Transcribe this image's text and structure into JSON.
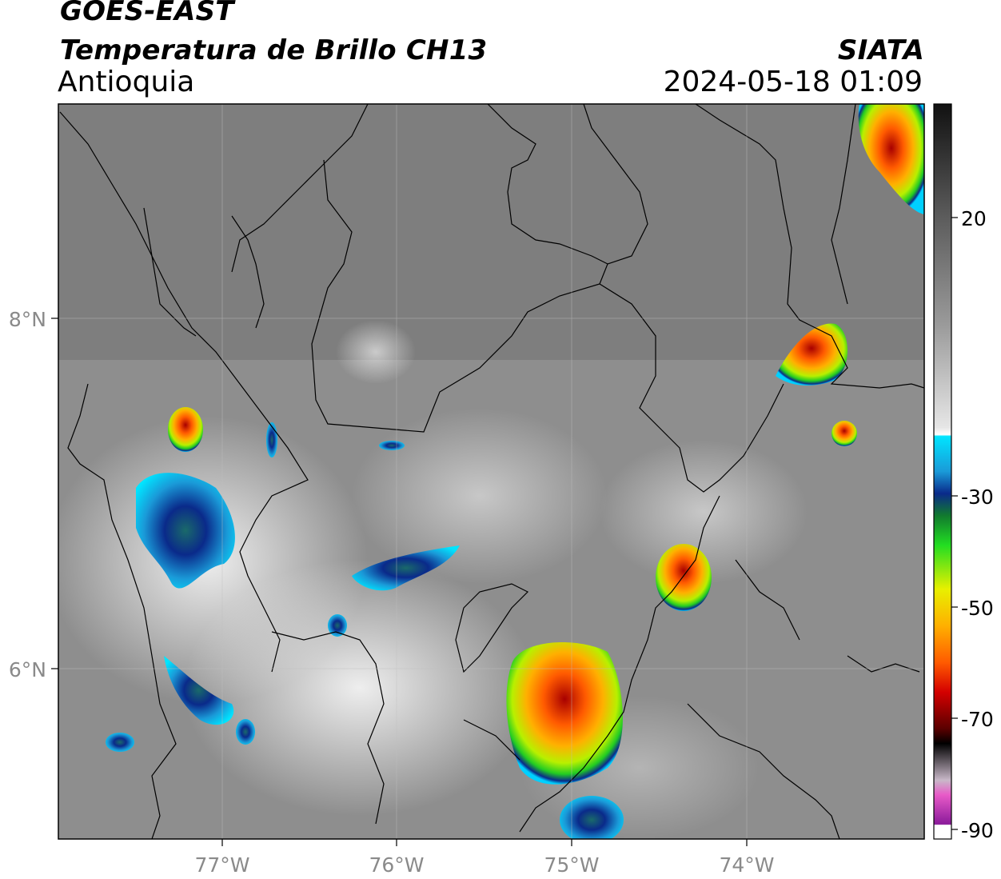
{
  "header": {
    "satellite": "GOES-EAST",
    "product": "Temperatura de Brillo CH13",
    "region": "Antioquia",
    "organization": "SIATA",
    "datetime": "2024-05-18 01:09"
  },
  "map": {
    "longitude_ticks": [
      "77°W",
      "76°W",
      "75°W",
      "74°W"
    ],
    "latitude_ticks": [
      "8°N",
      "6°N"
    ]
  },
  "colorbar": {
    "tick_labels": [
      "20",
      "-30",
      "-50",
      "-70",
      "-90"
    ],
    "colors": {
      "warm_gray_top": "#1a1a1a",
      "gray": "#8c8c8c",
      "white": "#f4f4f4",
      "cyan": "#00e5ff",
      "blue": "#0a2a8a",
      "green": "#19b83a",
      "yellow": "#f5e600",
      "orange": "#ff8a00",
      "red": "#d40000",
      "dark_red": "#4a0000",
      "pink": "#e040c0",
      "purple": "#8a1a9a"
    }
  }
}
